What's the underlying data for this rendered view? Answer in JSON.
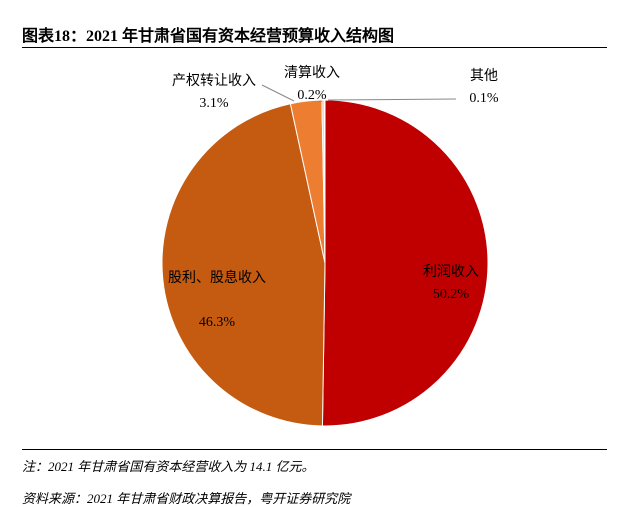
{
  "title": "图表18：2021 年甘肃省国有资本经营预算收入结构图",
  "note": "注：2021 年甘肃省国有资本经营收入为 14.1 亿元。",
  "source": "资料来源：2021 年甘肃省财政决算报告，粤开证券研究院",
  "chart_data": {
    "type": "pie",
    "title": "图表18：2021 年甘肃省国有资本经营预算收入结构图",
    "slices": [
      {
        "label": "利润收入",
        "value": 50.2,
        "value_label": "50.2%",
        "color": "#C00000"
      },
      {
        "label": "股利、股息收入",
        "value": 46.3,
        "value_label": "46.3%",
        "color": "#C55A11"
      },
      {
        "label": "产权转让收入",
        "value": 3.1,
        "value_label": "3.1%",
        "color": "#ED7D31"
      },
      {
        "label": "清算收入",
        "value": 0.2,
        "value_label": "0.2%",
        "color": "#F4B183"
      },
      {
        "label": "其他",
        "value": 0.1,
        "value_label": "0.1%",
        "color": "#F8CBAD"
      }
    ],
    "start_angle": "12 o'clock",
    "direction": "clockwise",
    "legend": "none (data labels)"
  }
}
